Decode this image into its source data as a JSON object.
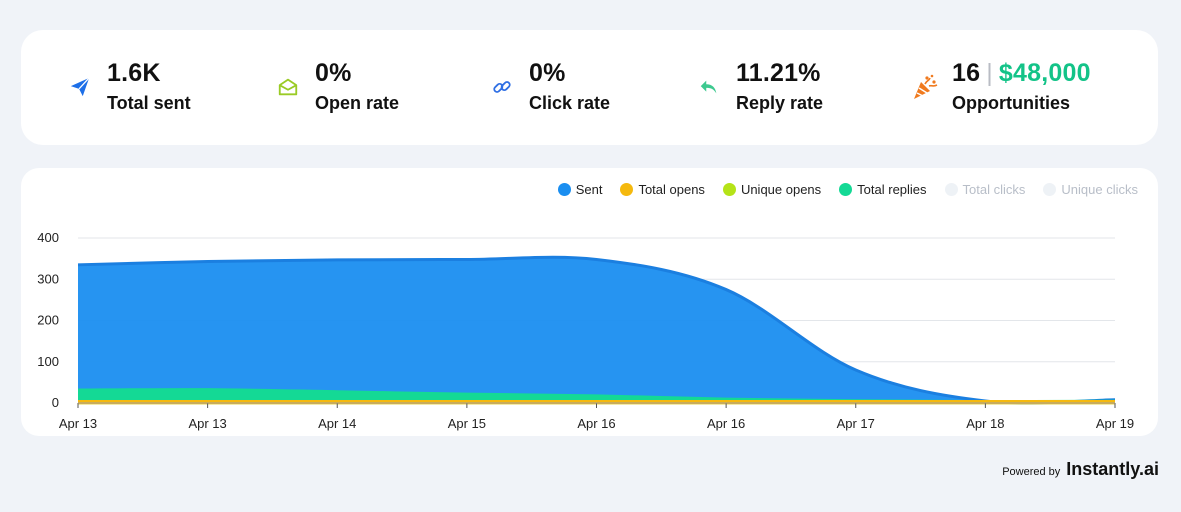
{
  "stats": [
    {
      "value": "1.6K",
      "label": "Total sent",
      "icon": "paper-plane-icon"
    },
    {
      "value": "0%",
      "label": "Open rate",
      "icon": "open-envelope-icon"
    },
    {
      "value": "0%",
      "label": "Click rate",
      "icon": "link-icon"
    },
    {
      "value": "11.21%",
      "label": "Reply rate",
      "icon": "reply-arrow-icon"
    },
    {
      "value": "16",
      "value_sep": "|",
      "value_money": "$48,000",
      "label": "Opportunities",
      "icon": "party-popper-icon"
    }
  ],
  "colors": {
    "sent": "#1a8ef0",
    "sent_line": "#1b7fe0",
    "total_opens": "#f5b90e",
    "unique_opens": "#b5e318",
    "total_replies": "#14d995",
    "total_clicks_off": "#eef2f6",
    "unique_clicks_off": "#eef2f6",
    "money": "#13c388",
    "plane": "#1d6fe8",
    "envelope": "#9acb25",
    "link": "#2f6fe4",
    "reply": "#3dc98f",
    "popper": "#f07a1e"
  },
  "legend": [
    {
      "label": "Sent",
      "key": "sent",
      "active": true
    },
    {
      "label": "Total opens",
      "key": "total_opens",
      "active": true
    },
    {
      "label": "Unique opens",
      "key": "unique_opens",
      "active": true
    },
    {
      "label": "Total replies",
      "key": "total_replies",
      "active": true
    },
    {
      "label": "Total clicks",
      "key": "total_clicks_off",
      "active": false
    },
    {
      "label": "Unique clicks",
      "key": "unique_clicks_off",
      "active": false
    }
  ],
  "chart_data": {
    "type": "area",
    "x": [
      "Apr 13",
      "Apr 13",
      "Apr 14",
      "Apr 15",
      "Apr 16",
      "Apr 16",
      "Apr 17",
      "Apr 18",
      "Apr 19"
    ],
    "series": [
      {
        "name": "Sent",
        "values": [
          335,
          343,
          347,
          348,
          348,
          275,
          80,
          5,
          8
        ]
      },
      {
        "name": "Total opens",
        "values": [
          0,
          0,
          0,
          0,
          0,
          0,
          0,
          0,
          0
        ]
      },
      {
        "name": "Unique opens",
        "values": [
          0,
          0,
          0,
          0,
          0,
          0,
          0,
          0,
          0
        ]
      },
      {
        "name": "Total replies",
        "values": [
          32,
          33,
          28,
          22,
          18,
          10,
          6,
          4,
          5
        ]
      }
    ],
    "yticks": [
      0,
      100,
      200,
      300,
      400
    ],
    "ylim": [
      0,
      400
    ],
    "grid": true,
    "legend_position": "top-right"
  },
  "footer": {
    "powered_by": "Powered by",
    "brand": "Instantly.ai"
  }
}
